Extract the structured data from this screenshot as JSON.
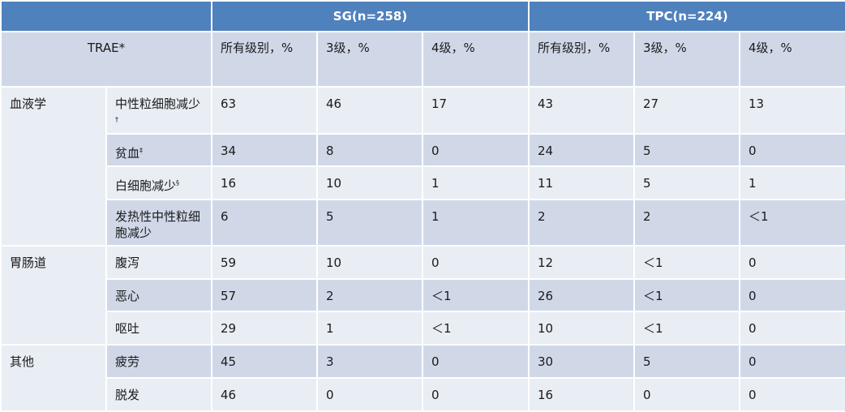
{
  "header": {
    "sg_group": "SG(n=258)",
    "tpc_group": "TPC(n=224)"
  },
  "subheader": {
    "trae": "TRAE*",
    "all_grades": "所有级别，%",
    "grade3": "3级，%",
    "grade4": "4级，%"
  },
  "groups": [
    {
      "name": "血液学",
      "rows": [
        {
          "event": "中性粒细胞减少",
          "mark": "†",
          "sg": [
            "63",
            "46",
            "17"
          ],
          "tpc": [
            "43",
            "27",
            "13"
          ]
        },
        {
          "event": "贫血",
          "mark": "‡",
          "sg": [
            "34",
            "8",
            "0"
          ],
          "tpc": [
            "24",
            "5",
            "0"
          ]
        },
        {
          "event": "白细胞减少",
          "mark": "§",
          "sg": [
            "16",
            "10",
            "1"
          ],
          "tpc": [
            "11",
            "5",
            "1"
          ]
        },
        {
          "event": "发热性中性粒细胞减少",
          "mark": "",
          "sg": [
            "6",
            "5",
            "1"
          ],
          "tpc": [
            "2",
            "2",
            "＜1"
          ]
        }
      ]
    },
    {
      "name": "胃肠道",
      "rows": [
        {
          "event": "腹泻",
          "mark": "",
          "sg": [
            "59",
            "10",
            "0"
          ],
          "tpc": [
            "12",
            "＜1",
            "0"
          ]
        },
        {
          "event": "恶心",
          "mark": "",
          "sg": [
            "57",
            "2",
            "＜1"
          ],
          "tpc": [
            "26",
            "＜1",
            "0"
          ]
        },
        {
          "event": "呕吐",
          "mark": "",
          "sg": [
            "29",
            "1",
            "＜1"
          ],
          "tpc": [
            "10",
            "＜1",
            "0"
          ]
        }
      ]
    },
    {
      "name": "其他",
      "rows": [
        {
          "event": "疲劳",
          "mark": "",
          "sg": [
            "45",
            "3",
            "0"
          ],
          "tpc": [
            "30",
            "5",
            "0"
          ]
        },
        {
          "event": "脱发",
          "mark": "",
          "sg": [
            "46",
            "0",
            "0"
          ],
          "tpc": [
            "16",
            "0",
            "0"
          ]
        }
      ]
    }
  ],
  "colors": {
    "header_bg": "#4f81bd",
    "row_dark": "#d0d8e8",
    "row_light": "#e9edf4"
  }
}
